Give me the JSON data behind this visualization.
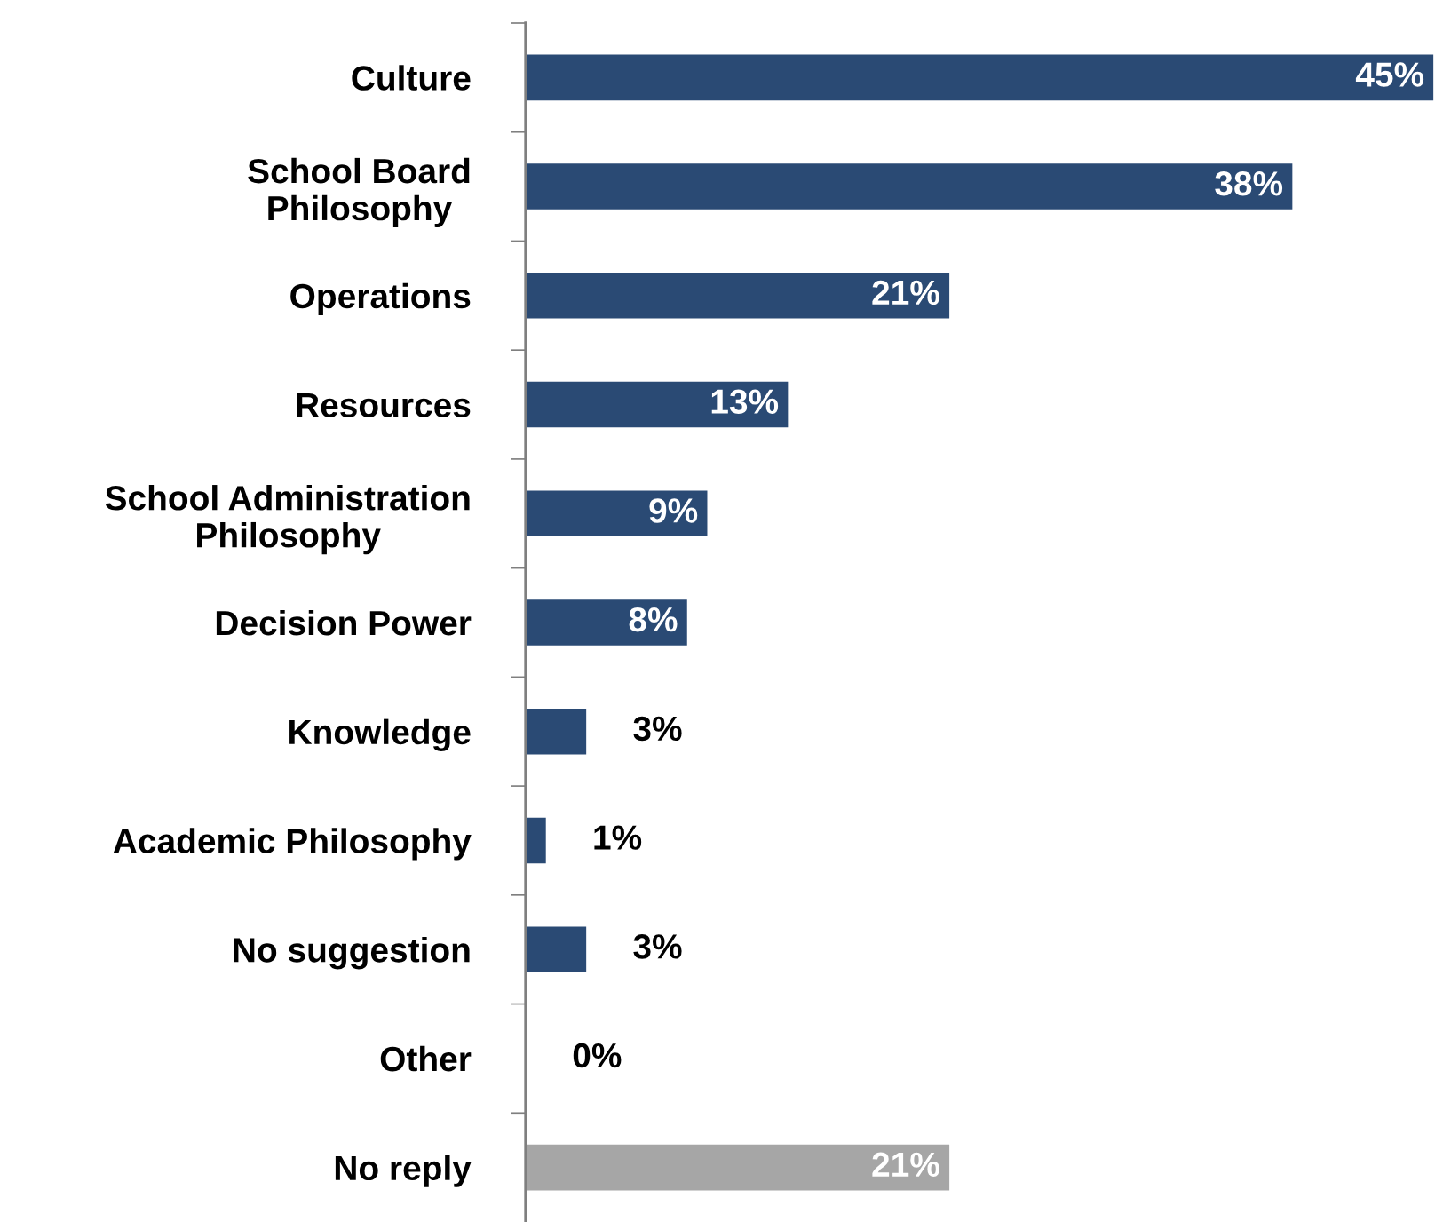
{
  "chart_data": {
    "type": "bar",
    "orientation": "horizontal",
    "categories": [
      "Culture",
      "School Board\nPhilosophy",
      "Operations",
      "Resources",
      "School Administration\nPhilosophy",
      "Decision Power",
      "Knowledge",
      "Academic Philosophy",
      "No suggestion",
      "Other",
      "No reply"
    ],
    "values": [
      45,
      38,
      21,
      13,
      9,
      8,
      3,
      1,
      3,
      0,
      21
    ],
    "value_labels": [
      "45%",
      "38%",
      "21%",
      "13%",
      "9%",
      "8%",
      "3%",
      "1%",
      "3%",
      "0%",
      "21%"
    ],
    "colors": [
      "#2a4a74",
      "#2a4a74",
      "#2a4a74",
      "#2a4a74",
      "#2a4a74",
      "#2a4a74",
      "#2a4a74",
      "#2a4a74",
      "#2a4a74",
      "#7f7f7f",
      "#a6a6a6"
    ],
    "grid": false,
    "legend": false
  }
}
